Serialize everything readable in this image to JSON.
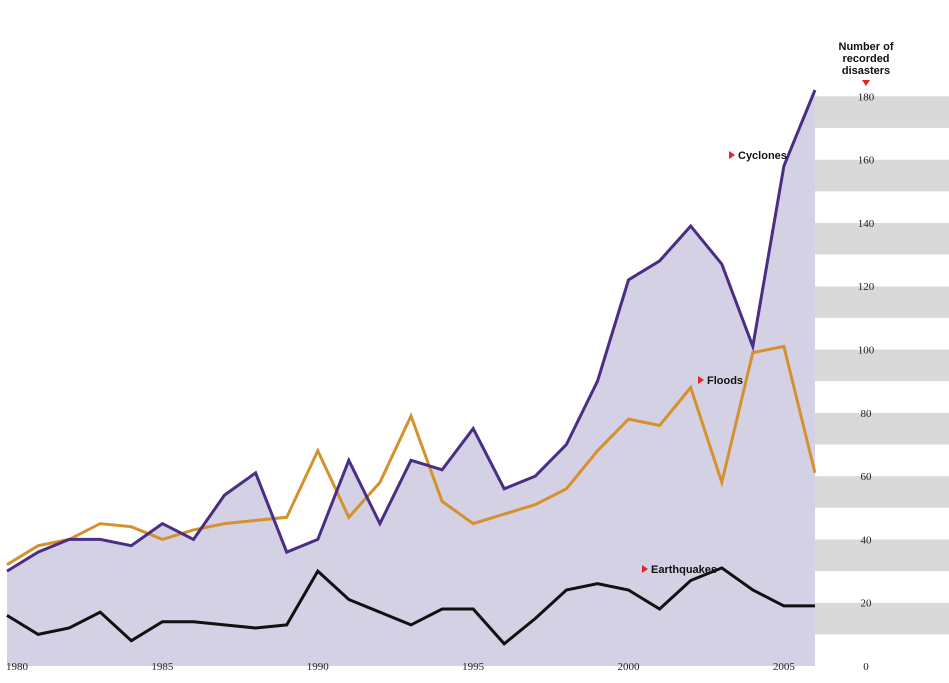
{
  "chart_data": {
    "type": "line",
    "title": "",
    "ylabel": "Number of recorded disasters",
    "ylabel_lines": [
      "Number of",
      "recorded",
      "disasters"
    ],
    "xlim": [
      1980,
      2006
    ],
    "ylim": [
      0,
      182
    ],
    "x_ticks": [
      1980,
      1985,
      1990,
      1995,
      2000,
      2005
    ],
    "y_ticks": [
      0,
      20,
      40,
      60,
      80,
      100,
      120,
      140,
      160,
      180
    ],
    "x": [
      1980,
      1981,
      1982,
      1983,
      1984,
      1985,
      1986,
      1987,
      1988,
      1989,
      1990,
      1991,
      1992,
      1993,
      1994,
      1995,
      1996,
      1997,
      1998,
      1999,
      2000,
      2001,
      2002,
      2003,
      2004,
      2005,
      2006
    ],
    "series": [
      {
        "name": "Cyclones",
        "color": "#4b2d84",
        "fill": "#d4d1e4",
        "values": [
          30,
          36,
          40,
          40,
          38,
          45,
          40,
          54,
          61,
          36,
          40,
          65,
          45,
          65,
          62,
          75,
          56,
          60,
          70,
          90,
          122,
          128,
          139,
          127,
          101,
          158,
          182
        ]
      },
      {
        "name": "Floods",
        "color": "#d4912e",
        "values": [
          32,
          38,
          40,
          45,
          44,
          40,
          43,
          45,
          46,
          47,
          68,
          47,
          58,
          79,
          52,
          45,
          48,
          51,
          56,
          68,
          78,
          76,
          88,
          58,
          99,
          101,
          61
        ]
      },
      {
        "name": "Earthquakes",
        "color": "#111111",
        "values": [
          16,
          10,
          12,
          17,
          8,
          14,
          14,
          13,
          12,
          13,
          30,
          21,
          17,
          13,
          18,
          18,
          7,
          15,
          24,
          26,
          24,
          18,
          27,
          31,
          24,
          19,
          19
        ]
      }
    ],
    "legend_marker_color": "#e0242a",
    "band_colors": [
      "#d9d9d9",
      "#ffffff"
    ],
    "grid": false
  }
}
